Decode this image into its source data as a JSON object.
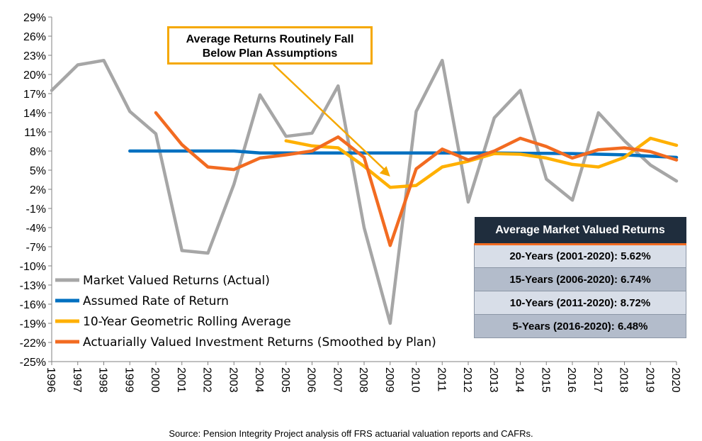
{
  "chart_data": {
    "type": "line",
    "categories": [
      "1996",
      "1997",
      "1998",
      "1999",
      "2000",
      "2001",
      "2002",
      "2003",
      "2004",
      "2005",
      "2006",
      "2007",
      "2008",
      "2009",
      "2010",
      "2011",
      "2012",
      "2013",
      "2014",
      "2015",
      "2016",
      "2017",
      "2018",
      "2019",
      "2020"
    ],
    "y_ticks": [
      "29%",
      "26%",
      "23%",
      "20%",
      "17%",
      "14%",
      "11%",
      "8%",
      "5%",
      "2%",
      "-1%",
      "-4%",
      "-7%",
      "-10%",
      "-13%",
      "-16%",
      "-19%",
      "-22%",
      "-25%"
    ],
    "ylim": [
      -25,
      29
    ],
    "grid": false,
    "legend_position": "lower-left",
    "series": [
      {
        "name": "Market Valued Returns (Actual)",
        "color": "#a6a6a6",
        "values": [
          17.5,
          21.5,
          22.2,
          14.2,
          10.7,
          -7.6,
          -8.0,
          2.8,
          16.8,
          10.3,
          10.8,
          18.2,
          -4.0,
          -19.0,
          14.2,
          22.2,
          0.0,
          13.2,
          17.5,
          3.6,
          0.3,
          14.0,
          9.6,
          5.8,
          3.3
        ]
      },
      {
        "name": "Assumed Rate of Return",
        "color": "#0070c0",
        "values": [
          null,
          null,
          null,
          8.0,
          8.0,
          8.0,
          8.0,
          8.0,
          7.7,
          7.7,
          7.7,
          7.7,
          7.7,
          7.7,
          7.7,
          7.7,
          7.7,
          7.7,
          7.65,
          7.65,
          7.6,
          7.5,
          7.4,
          7.2,
          7.0
        ]
      },
      {
        "name": "10-Year Geometric Rolling Average",
        "color": "#ffb000",
        "values": [
          null,
          null,
          null,
          null,
          null,
          null,
          null,
          null,
          null,
          9.6,
          8.8,
          8.5,
          5.6,
          2.3,
          2.6,
          5.5,
          6.4,
          7.6,
          7.5,
          6.9,
          5.9,
          5.5,
          7.0,
          10.0,
          8.9
        ]
      },
      {
        "name": "Actuarially Valued Investment Returns (Smoothed by Plan)",
        "color": "#f26b21",
        "values": [
          null,
          null,
          null,
          null,
          14.0,
          9.0,
          5.5,
          5.1,
          6.9,
          7.4,
          8.0,
          10.2,
          7.0,
          -6.8,
          5.2,
          8.3,
          6.6,
          8.0,
          10.0,
          8.7,
          6.9,
          8.2,
          8.5,
          7.9,
          6.6
        ]
      }
    ],
    "annotation": {
      "text_line1": "Average Returns Routinely Fall",
      "text_line2": "Below Plan Assumptions",
      "color": "#f5a800",
      "points_to": {
        "x": "2009",
        "y": 4.0
      }
    }
  },
  "summary_table": {
    "title": "Average Market Valued Returns",
    "rows": [
      "20-Years (2001-2020): 5.62%",
      "15-Years (2006-2020): 6.74%",
      "10-Years (2011-2020): 8.72%",
      "5-Years  (2016-2020): 6.48%"
    ]
  },
  "source": "Source: Pension Integrity Project analysis off FRS actuarial valuation reports and CAFRs."
}
